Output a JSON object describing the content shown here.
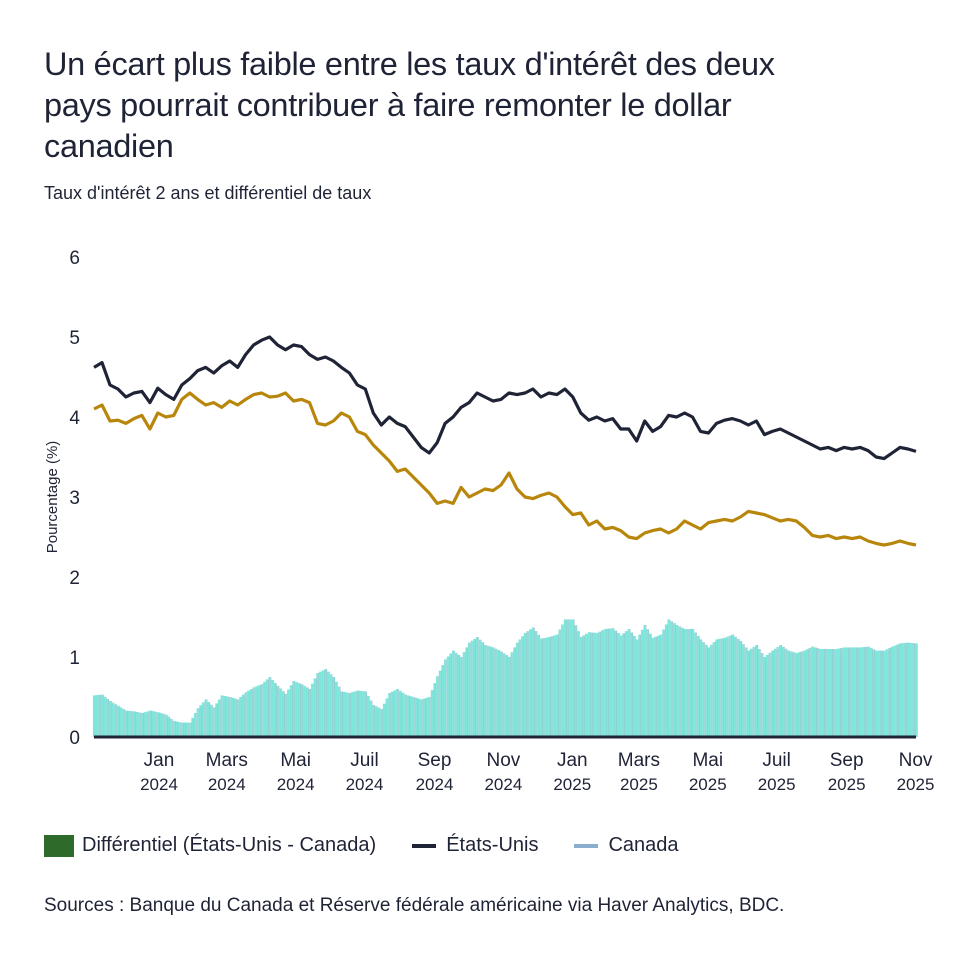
{
  "header": {
    "title": "Un écart plus faible entre les taux d'intérêt des deux pays pourrait contribuer à faire remonter le dollar canadien",
    "subtitle": "Taux d'intérêt 2 ans et différentiel de taux"
  },
  "legend": {
    "items": [
      {
        "label": "Différentiel (États-Unis - Canada)",
        "kind": "box",
        "color": "#2e6b2a"
      },
      {
        "label": "États-Unis",
        "kind": "line",
        "color": "#1f2336"
      },
      {
        "label": "Canada",
        "kind": "line",
        "color": "#8aaed0"
      }
    ]
  },
  "source": "Sources : Banque du Canada et Réserve fédérale américaine via Haver Analytics, BDC.",
  "chart_data": {
    "type": "line",
    "title": "Un écart plus faible entre les taux d'intérêt des deux pays pourrait contribuer à faire remonter le dollar canadien",
    "subtitle": "Taux d'intérêt 2 ans et différentiel de taux",
    "xlabel": "",
    "ylabel": "Pourcentage (%)",
    "ylim": [
      0,
      6
    ],
    "yticks": [
      "0",
      "1",
      "2",
      "3",
      "4",
      "5",
      "6"
    ],
    "grid": false,
    "legend_position": "bottom-left",
    "x_start": "2023-12-01",
    "x_end": "2025-11-28",
    "x_step": "weekly",
    "xticks": [
      {
        "month": "Jan",
        "year": "2024",
        "date": "2024-01-01"
      },
      {
        "month": "Mars",
        "year": "2024",
        "date": "2024-03-01"
      },
      {
        "month": "Mai",
        "year": "2024",
        "date": "2024-05-01"
      },
      {
        "month": "Juil",
        "year": "2024",
        "date": "2024-07-01"
      },
      {
        "month": "Sep",
        "year": "2024",
        "date": "2024-09-01"
      },
      {
        "month": "Nov",
        "year": "2024",
        "date": "2024-11-01"
      },
      {
        "month": "Jan",
        "year": "2025",
        "date": "2025-01-01"
      },
      {
        "month": "Mars",
        "year": "2025",
        "date": "2025-03-01"
      },
      {
        "month": "Mai",
        "year": "2025",
        "date": "2025-05-01"
      },
      {
        "month": "Juil",
        "year": "2025",
        "date": "2025-07-01"
      },
      {
        "month": "Sep",
        "year": "2025",
        "date": "2025-09-01"
      },
      {
        "month": "Nov",
        "year": "2025",
        "date": "2025-11-01"
      }
    ],
    "series": [
      {
        "name": "États-Unis",
        "role": "line",
        "color": "#1f2336",
        "values": [
          4.62,
          4.68,
          4.4,
          4.35,
          4.25,
          4.3,
          4.32,
          4.18,
          4.36,
          4.28,
          4.22,
          4.4,
          4.48,
          4.58,
          4.62,
          4.55,
          4.64,
          4.7,
          4.62,
          4.78,
          4.9,
          4.96,
          5.0,
          4.9,
          4.84,
          4.9,
          4.88,
          4.78,
          4.72,
          4.75,
          4.7,
          4.62,
          4.55,
          4.4,
          4.35,
          4.05,
          3.9,
          4.0,
          3.92,
          3.88,
          3.75,
          3.62,
          3.55,
          3.68,
          3.92,
          4.0,
          4.12,
          4.18,
          4.3,
          4.25,
          4.2,
          4.22,
          4.3,
          4.28,
          4.3,
          4.35,
          4.25,
          4.3,
          4.28,
          4.35,
          4.25,
          4.05,
          3.96,
          4.0,
          3.95,
          3.98,
          3.85,
          3.85,
          3.7,
          3.95,
          3.82,
          3.88,
          4.02,
          4.0,
          4.05,
          4.0,
          3.82,
          3.8,
          3.92,
          3.96,
          3.98,
          3.95,
          3.9,
          3.95,
          3.78,
          3.82,
          3.85,
          3.8,
          3.75,
          3.7,
          3.65,
          3.6,
          3.62,
          3.58,
          3.62,
          3.6,
          3.62,
          3.58,
          3.5,
          3.48,
          3.55,
          3.62,
          3.6,
          3.57
        ]
      },
      {
        "name": "Canada",
        "role": "line",
        "color": "#b8860b",
        "values": [
          4.1,
          4.15,
          3.95,
          3.96,
          3.92,
          3.98,
          4.02,
          3.85,
          4.05,
          4.0,
          4.02,
          4.22,
          4.3,
          4.22,
          4.15,
          4.18,
          4.12,
          4.2,
          4.15,
          4.22,
          4.28,
          4.3,
          4.25,
          4.26,
          4.3,
          4.2,
          4.22,
          4.18,
          3.92,
          3.9,
          3.95,
          4.05,
          4.0,
          3.82,
          3.78,
          3.65,
          3.55,
          3.45,
          3.32,
          3.35,
          3.25,
          3.15,
          3.05,
          2.92,
          2.95,
          2.92,
          3.12,
          3.0,
          3.05,
          3.1,
          3.08,
          3.15,
          3.3,
          3.1,
          3.0,
          2.98,
          3.02,
          3.05,
          3.0,
          2.88,
          2.78,
          2.8,
          2.65,
          2.7,
          2.6,
          2.62,
          2.58,
          2.5,
          2.48,
          2.55,
          2.58,
          2.6,
          2.55,
          2.6,
          2.7,
          2.65,
          2.6,
          2.68,
          2.7,
          2.72,
          2.7,
          2.75,
          2.82,
          2.8,
          2.78,
          2.74,
          2.7,
          2.72,
          2.7,
          2.62,
          2.52,
          2.5,
          2.52,
          2.48,
          2.5,
          2.48,
          2.5,
          2.45,
          2.42,
          2.4,
          2.42,
          2.45,
          2.42,
          2.4
        ]
      },
      {
        "name": "Différentiel (États-Unis - Canada)",
        "role": "bar",
        "color": "#7fe6dc",
        "derived_from": "États-Unis - Canada"
      }
    ]
  }
}
